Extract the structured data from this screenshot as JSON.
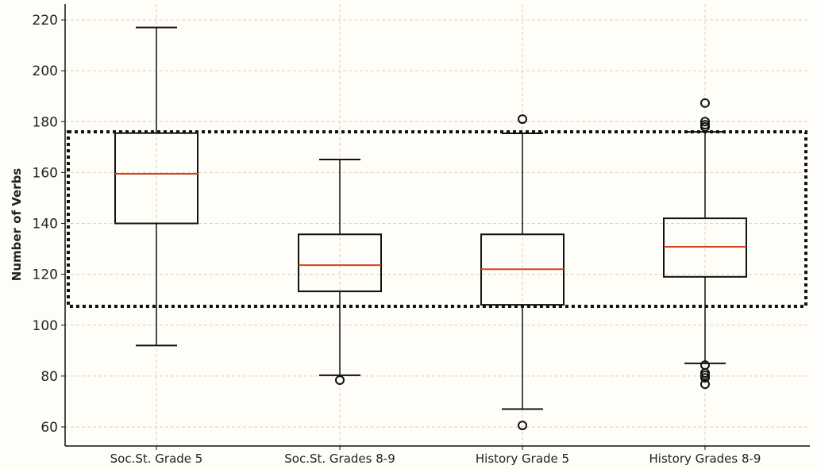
{
  "chart_data": {
    "type": "box",
    "title": "",
    "xlabel": "",
    "ylabel": "Number of Verbs",
    "ylim": [
      53,
      223
    ],
    "yticks": [
      60,
      80,
      100,
      120,
      140,
      160,
      180,
      200,
      220
    ],
    "grid": true,
    "categories": [
      "Soc.St. Grade 5",
      "Soc.St. Grades 8-9",
      "History Grade 5",
      "History Grades 8-9"
    ],
    "boxes": [
      {
        "whisker_low": 92,
        "q1": 140,
        "median": 159.5,
        "q3": 175.5,
        "whisker_high": 217,
        "outliers": []
      },
      {
        "whisker_low": 80.3,
        "q1": 113.3,
        "median": 123.6,
        "q3": 135.7,
        "whisker_high": 165.1,
        "outliers": [
          78.4
        ]
      },
      {
        "whisker_low": 67,
        "q1": 108,
        "median": 122,
        "q3": 135.7,
        "whisker_high": 175.4,
        "outliers": [
          181,
          60.6
        ]
      },
      {
        "whisker_low": 85,
        "q1": 119,
        "median": 130.8,
        "q3": 142,
        "whisker_high": 176,
        "outliers": [
          187.3,
          180,
          178.8,
          177.9,
          84.3,
          81.2,
          80.3,
          79.3,
          76.8
        ]
      }
    ],
    "highlight_region": {
      "y_low": 107.4,
      "y_high": 176,
      "style": "dotted"
    },
    "colors": {
      "median": "#d6401e",
      "box": "#111111",
      "grid": "#d8d2b8",
      "background": "#fffdf8"
    }
  }
}
